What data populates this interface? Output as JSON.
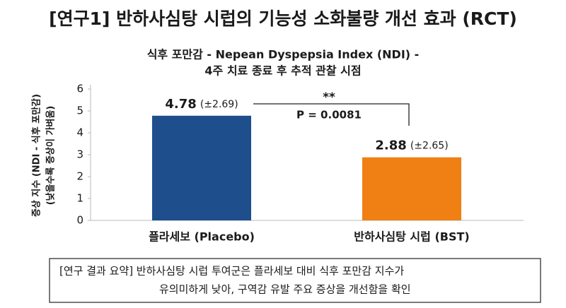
{
  "chart_data": {
    "type": "bar",
    "title": "[연구1] 반하사심탕 시럽의 기능성 소화불량 개선 효과 (RCT)",
    "subtitle": [
      "식후 포만감 - Nepean Dyspepsia Index (NDI) -",
      "4주 치료 종료 후 추적 관찰 시점"
    ],
    "y_label": [
      "증상 지수 (NDI - 식후 포만감)",
      "(낮을수록 증상이 가벼움)"
    ],
    "categories": [
      "플라세보 (Placebo)",
      "반하사심탕 시럽 (BST)"
    ],
    "values": [
      4.78,
      2.88
    ],
    "error_labels": [
      "(±2.69)",
      "(±2.65)"
    ],
    "colors": [
      "#1f4e8c",
      "#f07f14"
    ],
    "ylim": [
      0,
      6
    ],
    "yticks": [
      0,
      1,
      2,
      3,
      4,
      5,
      6
    ],
    "grid": false,
    "annotations": [
      "**",
      "P = 0.0081"
    ],
    "summary": [
      "[연구 결과 요약] 반하사심탕 시럽 투여군은 플라세보 대비 식후 포만감 지수가",
      "유의미하게 낮아, 구역감 유발 주요 증상을 개선함을 확인"
    ]
  }
}
